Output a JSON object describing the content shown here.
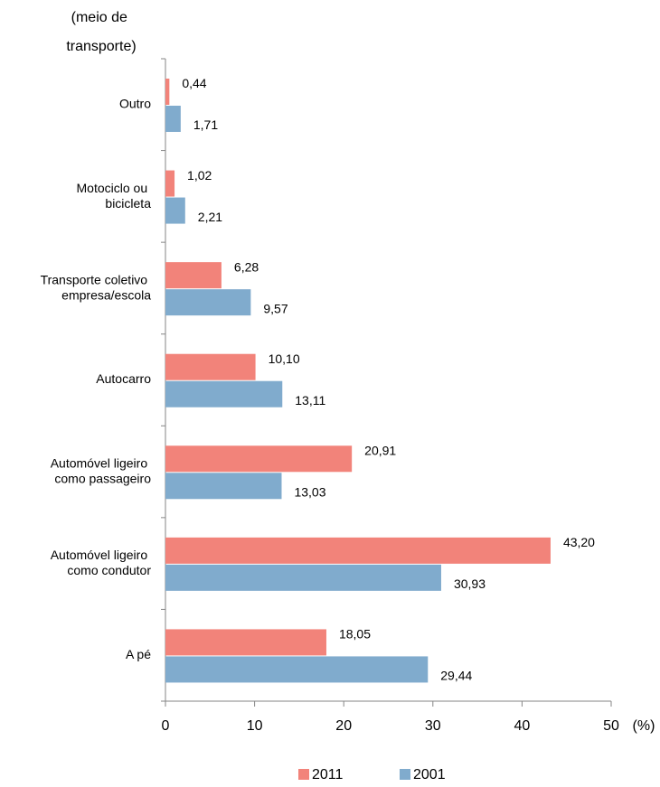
{
  "chart_data": {
    "type": "hbar",
    "y_axis_label": "(meio de\ntransporte)",
    "x_axis_label": "(%)",
    "categories": [
      "Outro",
      "Motociclo ou\nbicicleta",
      "Transporte coletivo\nempresa/escola",
      "Autocarro",
      "Automóvel ligeiro\ncomo passageiro",
      "Automóvel ligeiro\ncomo condutor",
      "A pé"
    ],
    "series": [
      {
        "name": "2011",
        "color": "#f2837a",
        "values": [
          0.44,
          1.02,
          6.28,
          10.1,
          20.91,
          43.2,
          18.05
        ],
        "value_labels": [
          "0,44",
          "1,02",
          "6,28",
          "10,10",
          "20,91",
          "43,20",
          "18,05"
        ]
      },
      {
        "name": "2001",
        "color": "#80abcd",
        "values": [
          1.71,
          2.21,
          9.57,
          13.11,
          13.03,
          30.93,
          29.44
        ],
        "value_labels": [
          "1,71",
          "2,21",
          "9,57",
          "13,11",
          "13,03",
          "30,93",
          "29,44"
        ]
      }
    ],
    "xlim": [
      0,
      50
    ],
    "xticks": [
      0,
      10,
      20,
      30,
      40,
      50
    ],
    "legend": "bottom"
  }
}
